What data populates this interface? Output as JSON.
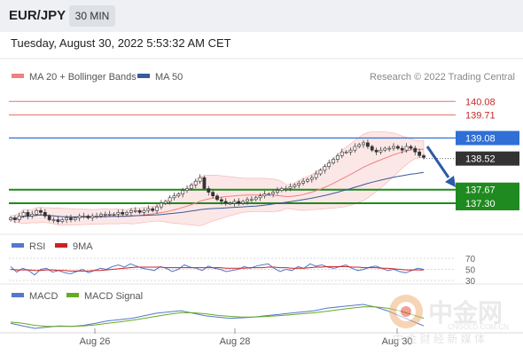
{
  "header": {
    "symbol": "EUR/JPY",
    "timeframe": "30 MIN"
  },
  "timestamp": "Tuesday, August 30, 2022 5:53:32 AM CET",
  "legend": {
    "ma20": "MA 20 + Bollinger Bands",
    "ma50": "MA 50",
    "credit": "Research © 2022 Trading Central",
    "rsi": "RSI",
    "rsi_ma": "9MA",
    "macd": "MACD",
    "macd_signal": "MACD Signal"
  },
  "colors": {
    "ma20": "#f08080",
    "ma50": "#3a5a9c",
    "resistance": "#e57373",
    "pivot": "#2f6fd6",
    "support": "#1f8a1f",
    "last": "#333333",
    "rsi": "#5577cc",
    "rsi_ma": "#cc2222",
    "macd": "#5577cc",
    "macd_signal": "#66aa22"
  },
  "watermark": {
    "cn": "中金网",
    "domain": "CNGOLD.COM.CN",
    "tagline": "中 金 财 经 新 媒 体"
  },
  "chart_data": [
    {
      "type": "candlestick",
      "title": "EUR/JPY 30 MIN",
      "x_ticks": [
        "Aug 26",
        "Aug 28",
        "Aug 30"
      ],
      "ylim": [
        136.5,
        140.45
      ],
      "close": [
        136.9,
        136.85,
        136.95,
        137.05,
        136.95,
        137.0,
        137.1,
        137.05,
        136.95,
        136.85,
        136.85,
        136.8,
        136.85,
        136.9,
        136.85,
        136.9,
        136.95,
        136.95,
        136.9,
        136.95,
        136.95,
        137.0,
        137.0,
        137.0,
        137.0,
        137.05,
        137.0,
        137.05,
        137.1,
        137.1,
        137.05,
        137.1,
        137.15,
        137.1,
        137.2,
        137.3,
        137.35,
        137.45,
        137.5,
        137.55,
        137.65,
        137.7,
        137.8,
        137.9,
        138.0,
        137.7,
        137.6,
        137.5,
        137.4,
        137.35,
        137.3,
        137.3,
        137.35,
        137.3,
        137.35,
        137.4,
        137.4,
        137.45,
        137.5,
        137.55,
        137.55,
        137.6,
        137.65,
        137.7,
        137.7,
        137.75,
        137.8,
        137.85,
        137.9,
        137.95,
        138.0,
        138.1,
        138.2,
        138.3,
        138.4,
        138.5,
        138.6,
        138.7,
        138.7,
        138.75,
        138.85,
        138.9,
        138.95,
        138.85,
        138.75,
        138.7,
        138.75,
        138.8,
        138.8,
        138.85,
        138.8,
        138.75,
        138.85,
        138.8,
        138.7,
        138.6,
        138.55
      ],
      "levels": [
        {
          "label": "140.08",
          "value": 140.08,
          "kind": "resistance"
        },
        {
          "label": "139.71",
          "value": 139.71,
          "kind": "resistance"
        },
        {
          "label": "139.08",
          "value": 139.08,
          "kind": "pivot"
        },
        {
          "label": "138.52",
          "value": 138.52,
          "kind": "last"
        },
        {
          "label": "137.67",
          "value": 137.67,
          "kind": "support"
        },
        {
          "label": "137.30",
          "value": 137.3,
          "kind": "support"
        }
      ],
      "series": [
        {
          "name": "MA 20 + Bollinger Bands"
        },
        {
          "name": "MA 50"
        }
      ]
    },
    {
      "type": "line",
      "title": "RSI",
      "ylim": [
        30,
        70
      ],
      "y_ticks": [
        "70",
        "50",
        "30"
      ],
      "series": [
        {
          "name": "RSI",
          "values": [
            55,
            45,
            52,
            48,
            40,
            50,
            52,
            45,
            48,
            44,
            42,
            46,
            50,
            44,
            48,
            52,
            50,
            55,
            58,
            54,
            60,
            56,
            52,
            50,
            48,
            55,
            52,
            46,
            50,
            58,
            54,
            52,
            48,
            56,
            52,
            50,
            46,
            48,
            50,
            55,
            52,
            56,
            58,
            60,
            52,
            46,
            50,
            48,
            55,
            52,
            60,
            56,
            58,
            54,
            52,
            55,
            58,
            52,
            48,
            50,
            54,
            56,
            52,
            48,
            50,
            46,
            44,
            48,
            52,
            50
          ]
        },
        {
          "name": "9MA",
          "values": [
            50,
            49,
            49,
            49,
            48,
            48,
            49,
            49,
            48,
            48,
            47,
            47,
            47,
            47,
            48,
            48,
            49,
            50,
            51,
            52,
            53,
            54,
            54,
            54,
            54,
            54,
            53,
            53,
            53,
            53,
            53,
            53,
            53,
            53,
            53,
            53,
            52,
            52,
            52,
            52,
            53,
            53,
            53,
            54,
            54,
            53,
            53,
            52,
            52,
            52,
            53,
            54,
            54,
            55,
            55,
            55,
            55,
            54,
            54,
            53,
            53,
            53,
            52,
            52,
            51,
            50,
            49,
            49,
            49,
            49
          ]
        }
      ]
    },
    {
      "type": "line",
      "title": "MACD",
      "series": [
        {
          "name": "MACD",
          "values": [
            -0.1,
            -0.2,
            -0.3,
            -0.25,
            -0.2,
            -0.22,
            -0.18,
            -0.1,
            0.0,
            0.05,
            0.1,
            0.2,
            0.3,
            0.35,
            0.4,
            0.3,
            0.2,
            0.15,
            0.1,
            0.12,
            0.15,
            0.2,
            0.25,
            0.3,
            0.35,
            0.4,
            0.5,
            0.55,
            0.6,
            0.65,
            0.55,
            0.4,
            0.2,
            0.0,
            -0.2
          ]
        },
        {
          "name": "MACD Signal",
          "values": [
            -0.05,
            -0.1,
            -0.18,
            -0.22,
            -0.22,
            -0.22,
            -0.2,
            -0.16,
            -0.1,
            -0.04,
            0.02,
            0.1,
            0.18,
            0.26,
            0.32,
            0.32,
            0.28,
            0.22,
            0.18,
            0.15,
            0.15,
            0.17,
            0.2,
            0.24,
            0.28,
            0.32,
            0.38,
            0.44,
            0.5,
            0.55,
            0.55,
            0.5,
            0.4,
            0.25,
            0.1
          ]
        }
      ]
    }
  ]
}
